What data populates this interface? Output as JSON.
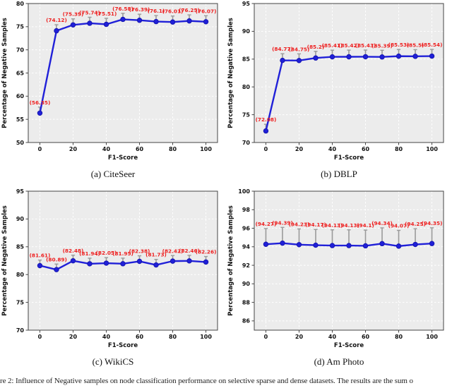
{
  "figure_caption": "re 2: Influence of Negative samples on node classification performance on selective sparse and dense datasets. The results are the sum o",
  "colors": {
    "line": "#2020d8",
    "marker_edge": "#1515b0",
    "label": "#ee2222",
    "errorbar": "#9a9a9a",
    "plot_bg": "#ececec",
    "grid": "#ffffff",
    "spine": "#444444",
    "text": "#111111"
  },
  "chart_data": [
    {
      "type": "line",
      "caption": "(a) CiteSeer",
      "xlabel": "F1-Score",
      "ylabel": "Percentage of Negative Samples",
      "x": [
        0,
        10,
        20,
        30,
        40,
        50,
        60,
        70,
        80,
        90,
        100
      ],
      "values": [
        56.35,
        74.12,
        75.39,
        75.74,
        75.51,
        76.58,
        76.39,
        76.1,
        76.01,
        76.25,
        76.07
      ],
      "xlim": [
        0,
        100
      ],
      "ylim": [
        50,
        80
      ],
      "xticks": [
        0,
        20,
        40,
        60,
        80,
        100
      ],
      "yticks": [
        50,
        55,
        60,
        65,
        70,
        75,
        80
      ],
      "err_up": 1.3,
      "grid": true,
      "legend": "none"
    },
    {
      "type": "line",
      "caption": "(b) DBLP",
      "xlabel": "F1-Score",
      "ylabel": "Percentage of Negative Samples",
      "x": [
        0,
        10,
        20,
        30,
        40,
        50,
        60,
        70,
        80,
        90,
        100
      ],
      "values": [
        72.08,
        84.77,
        84.75,
        85.2,
        85.41,
        85.42,
        85.43,
        85.39,
        85.53,
        85.5,
        85.54
      ],
      "xlim": [
        0,
        100
      ],
      "ylim": [
        70,
        95
      ],
      "xticks": [
        0,
        20,
        40,
        60,
        80,
        100
      ],
      "yticks": [
        70,
        75,
        80,
        85,
        90,
        95
      ],
      "err_up": 1.2,
      "grid": true,
      "legend": "none"
    },
    {
      "type": "line",
      "caption": "(c) WikiCS",
      "xlabel": "F1-Score",
      "ylabel": "Percentage of Negative Samples",
      "x": [
        0,
        10,
        20,
        30,
        40,
        50,
        60,
        70,
        80,
        90,
        100
      ],
      "values": [
        81.61,
        80.89,
        82.48,
        81.94,
        82.05,
        81.95,
        82.38,
        81.73,
        82.42,
        82.46,
        82.26
      ],
      "xlim": [
        0,
        100
      ],
      "ylim": [
        70,
        95
      ],
      "xticks": [
        0,
        20,
        40,
        60,
        80,
        100
      ],
      "yticks": [
        70,
        75,
        80,
        85,
        90,
        95
      ],
      "err_up": 1.0,
      "grid": true,
      "legend": "none"
    },
    {
      "type": "line",
      "caption": "(d) Am Photo",
      "xlabel": "F1-Score",
      "ylabel": "Percentage of Negative Samples",
      "x": [
        0,
        10,
        20,
        30,
        40,
        50,
        60,
        70,
        80,
        90,
        100
      ],
      "values": [
        94.27,
        94.39,
        94.23,
        94.17,
        94.13,
        94.13,
        94.1,
        94.34,
        94.07,
        94.25,
        94.35
      ],
      "xlim": [
        0,
        100
      ],
      "ylim": [
        85,
        100
      ],
      "xticks": [
        0,
        20,
        40,
        60,
        80,
        100
      ],
      "yticks": [
        86,
        88,
        90,
        92,
        94,
        96,
        98,
        100
      ],
      "err_up": 1.7,
      "grid": true,
      "legend": "none"
    }
  ]
}
